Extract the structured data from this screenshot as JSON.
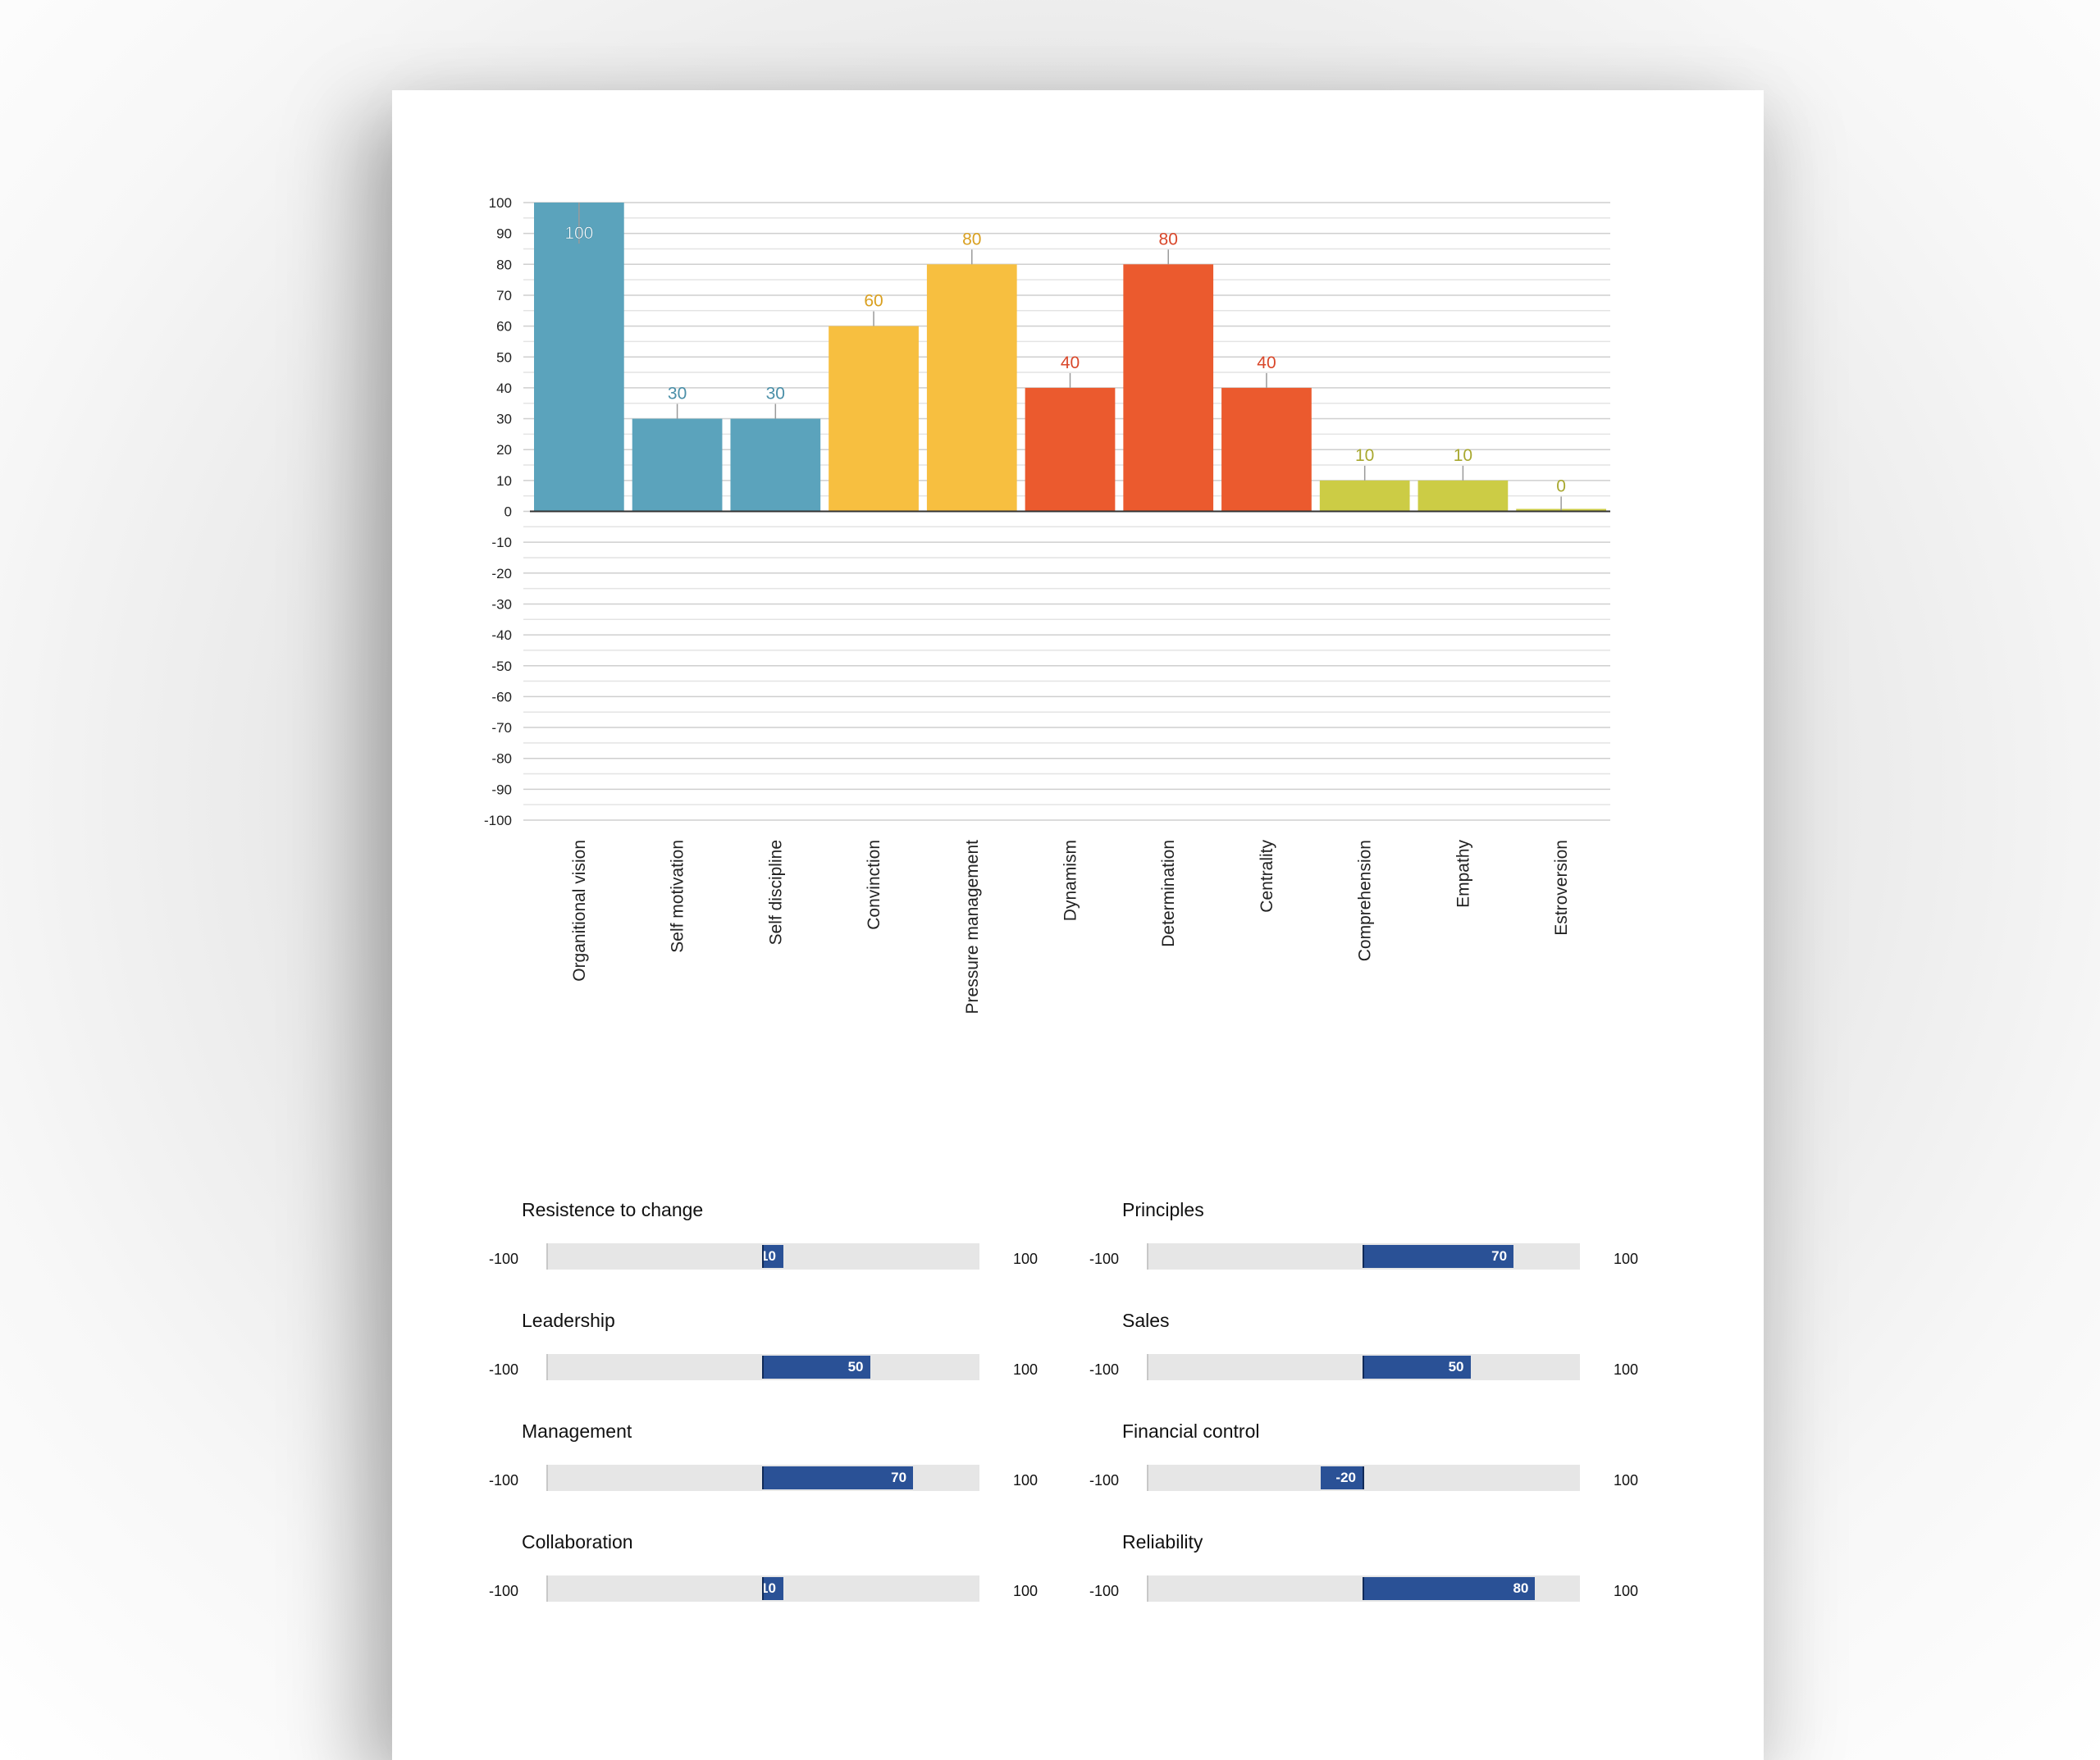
{
  "chart_data": [
    {
      "type": "bar",
      "categories": [
        "Organitional vision",
        "Self motivation",
        "Self discipline",
        "Convinction",
        "Pressure management",
        "Dynamism",
        "Determination",
        "Centrality",
        "Comprehension",
        "Empathy",
        "Estroversion"
      ],
      "values": [
        100,
        30,
        30,
        60,
        80,
        40,
        80,
        40,
        10,
        10,
        0
      ],
      "colors": [
        "#5ba3bc",
        "#5ba3bc",
        "#5ba3bc",
        "#f7bf40",
        "#f7bf40",
        "#eb5a2e",
        "#eb5a2e",
        "#eb5a2e",
        "#cccc45",
        "#cccc45",
        "#cccc45"
      ],
      "label_colors": [
        "#ffffff",
        "#4a8fa8",
        "#4a8fa8",
        "#d9a020",
        "#d9a020",
        "#d9472a",
        "#d9472a",
        "#d9472a",
        "#a8a830",
        "#a8a830",
        "#a8a830"
      ],
      "ylim": [
        -100,
        100
      ],
      "yticks": [
        100,
        90,
        80,
        70,
        60,
        50,
        40,
        30,
        20,
        10,
        0,
        -10,
        -20,
        -30,
        -40,
        -50,
        -60,
        -70,
        -80,
        -90,
        -100
      ],
      "grid": true,
      "title": "",
      "xlabel": "",
      "ylabel": ""
    },
    {
      "type": "bar",
      "title": "Resistence to change",
      "categories": [
        "Resistence to change"
      ],
      "values": [
        10
      ],
      "ylim": [
        -100,
        100
      ]
    },
    {
      "type": "bar",
      "title": "Leadership",
      "categories": [
        "Leadership"
      ],
      "values": [
        50
      ],
      "ylim": [
        -100,
        100
      ]
    },
    {
      "type": "bar",
      "title": "Management",
      "categories": [
        "Management"
      ],
      "values": [
        70
      ],
      "ylim": [
        -100,
        100
      ]
    },
    {
      "type": "bar",
      "title": "Collaboration",
      "categories": [
        "Collaboration"
      ],
      "values": [
        10
      ],
      "ylim": [
        -100,
        100
      ]
    },
    {
      "type": "bar",
      "title": "Principles",
      "categories": [
        "Principles"
      ],
      "values": [
        70
      ],
      "ylim": [
        -100,
        100
      ]
    },
    {
      "type": "bar",
      "title": "Sales",
      "categories": [
        "Sales"
      ],
      "values": [
        50
      ],
      "ylim": [
        -100,
        100
      ]
    },
    {
      "type": "bar",
      "title": "Financial control",
      "categories": [
        "Financial control"
      ],
      "values": [
        -20
      ],
      "ylim": [
        -100,
        100
      ]
    },
    {
      "type": "bar",
      "title": "Reliability",
      "categories": [
        "Reliability"
      ],
      "values": [
        80
      ],
      "ylim": [
        -100,
        100
      ]
    }
  ],
  "gauges": [
    {
      "label": "Resistence to change",
      "value": 10,
      "value_text": "10",
      "min_text": "-100",
      "max_text": "100"
    },
    {
      "label": "Leadership",
      "value": 50,
      "value_text": "50",
      "min_text": "-100",
      "max_text": "100"
    },
    {
      "label": "Management",
      "value": 70,
      "value_text": "70",
      "min_text": "-100",
      "max_text": "100"
    },
    {
      "label": "Collaboration",
      "value": 10,
      "value_text": "10",
      "min_text": "-100",
      "max_text": "100"
    },
    {
      "label": "Principles",
      "value": 70,
      "value_text": "70",
      "min_text": "-100",
      "max_text": "100"
    },
    {
      "label": "Sales",
      "value": 50,
      "value_text": "50",
      "min_text": "-100",
      "max_text": "100"
    },
    {
      "label": "Financial control",
      "value": -20,
      "value_text": "-20",
      "min_text": "-100",
      "max_text": "100"
    },
    {
      "label": "Reliability",
      "value": 80,
      "value_text": "80",
      "min_text": "-100",
      "max_text": "100"
    }
  ]
}
